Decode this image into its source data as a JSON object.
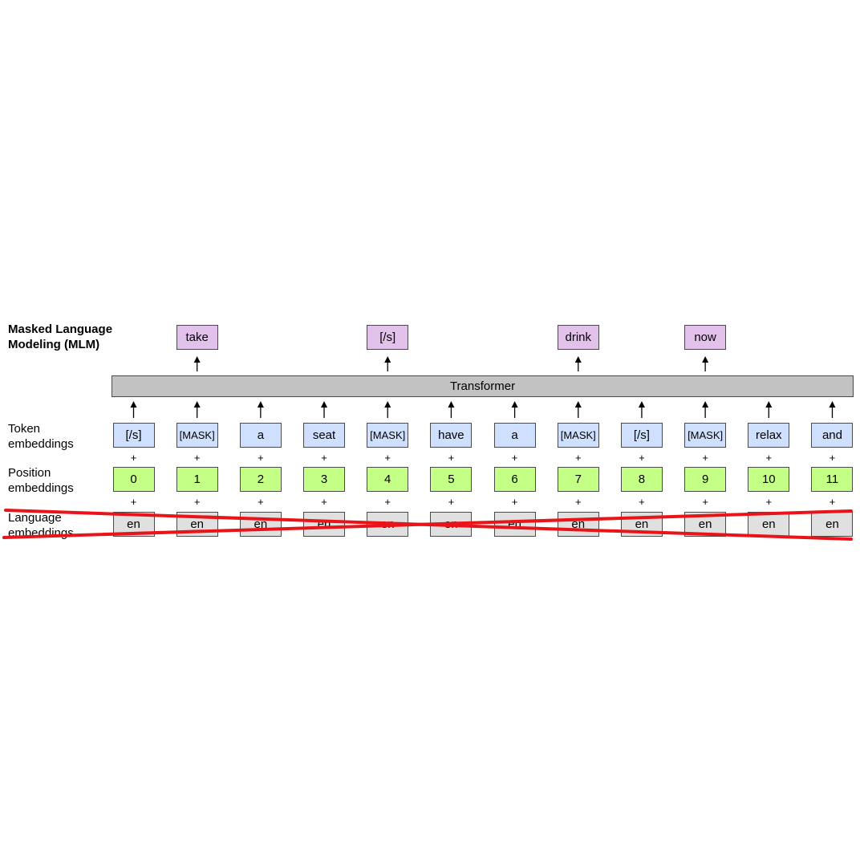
{
  "title": [
    "Masked Language",
    "Modeling (MLM)"
  ],
  "transformer_label": "Transformer",
  "row_labels": {
    "token": [
      "Token",
      "embeddings"
    ],
    "position": [
      "Position",
      "embeddings"
    ],
    "language": [
      "Language",
      "embeddings"
    ]
  },
  "outputs": [
    {
      "col": 1,
      "text": "take"
    },
    {
      "col": 4,
      "text": "[/s]"
    },
    {
      "col": 7,
      "text": "drink"
    },
    {
      "col": 9,
      "text": "now"
    }
  ],
  "tokens": [
    "[/s]",
    "[MASK]",
    "a",
    "seat",
    "[MASK]",
    "have",
    "a",
    "[MASK]",
    "[/s]",
    "[MASK]",
    "relax",
    "and"
  ],
  "positions": [
    "0",
    "1",
    "2",
    "3",
    "4",
    "5",
    "6",
    "7",
    "8",
    "9",
    "10",
    "11"
  ],
  "languages": [
    "en",
    "en",
    "en",
    "en",
    "en",
    "en",
    "en",
    "en",
    "en",
    "en",
    "en",
    "en"
  ],
  "plus_sign": "+",
  "colors": {
    "token": "#cfe0ff",
    "position": "#c4ff86",
    "language": "#e0e0e0",
    "output": "#e2c2ea",
    "transformer": "#c2c2c2",
    "cross_out": "#e8141a"
  }
}
